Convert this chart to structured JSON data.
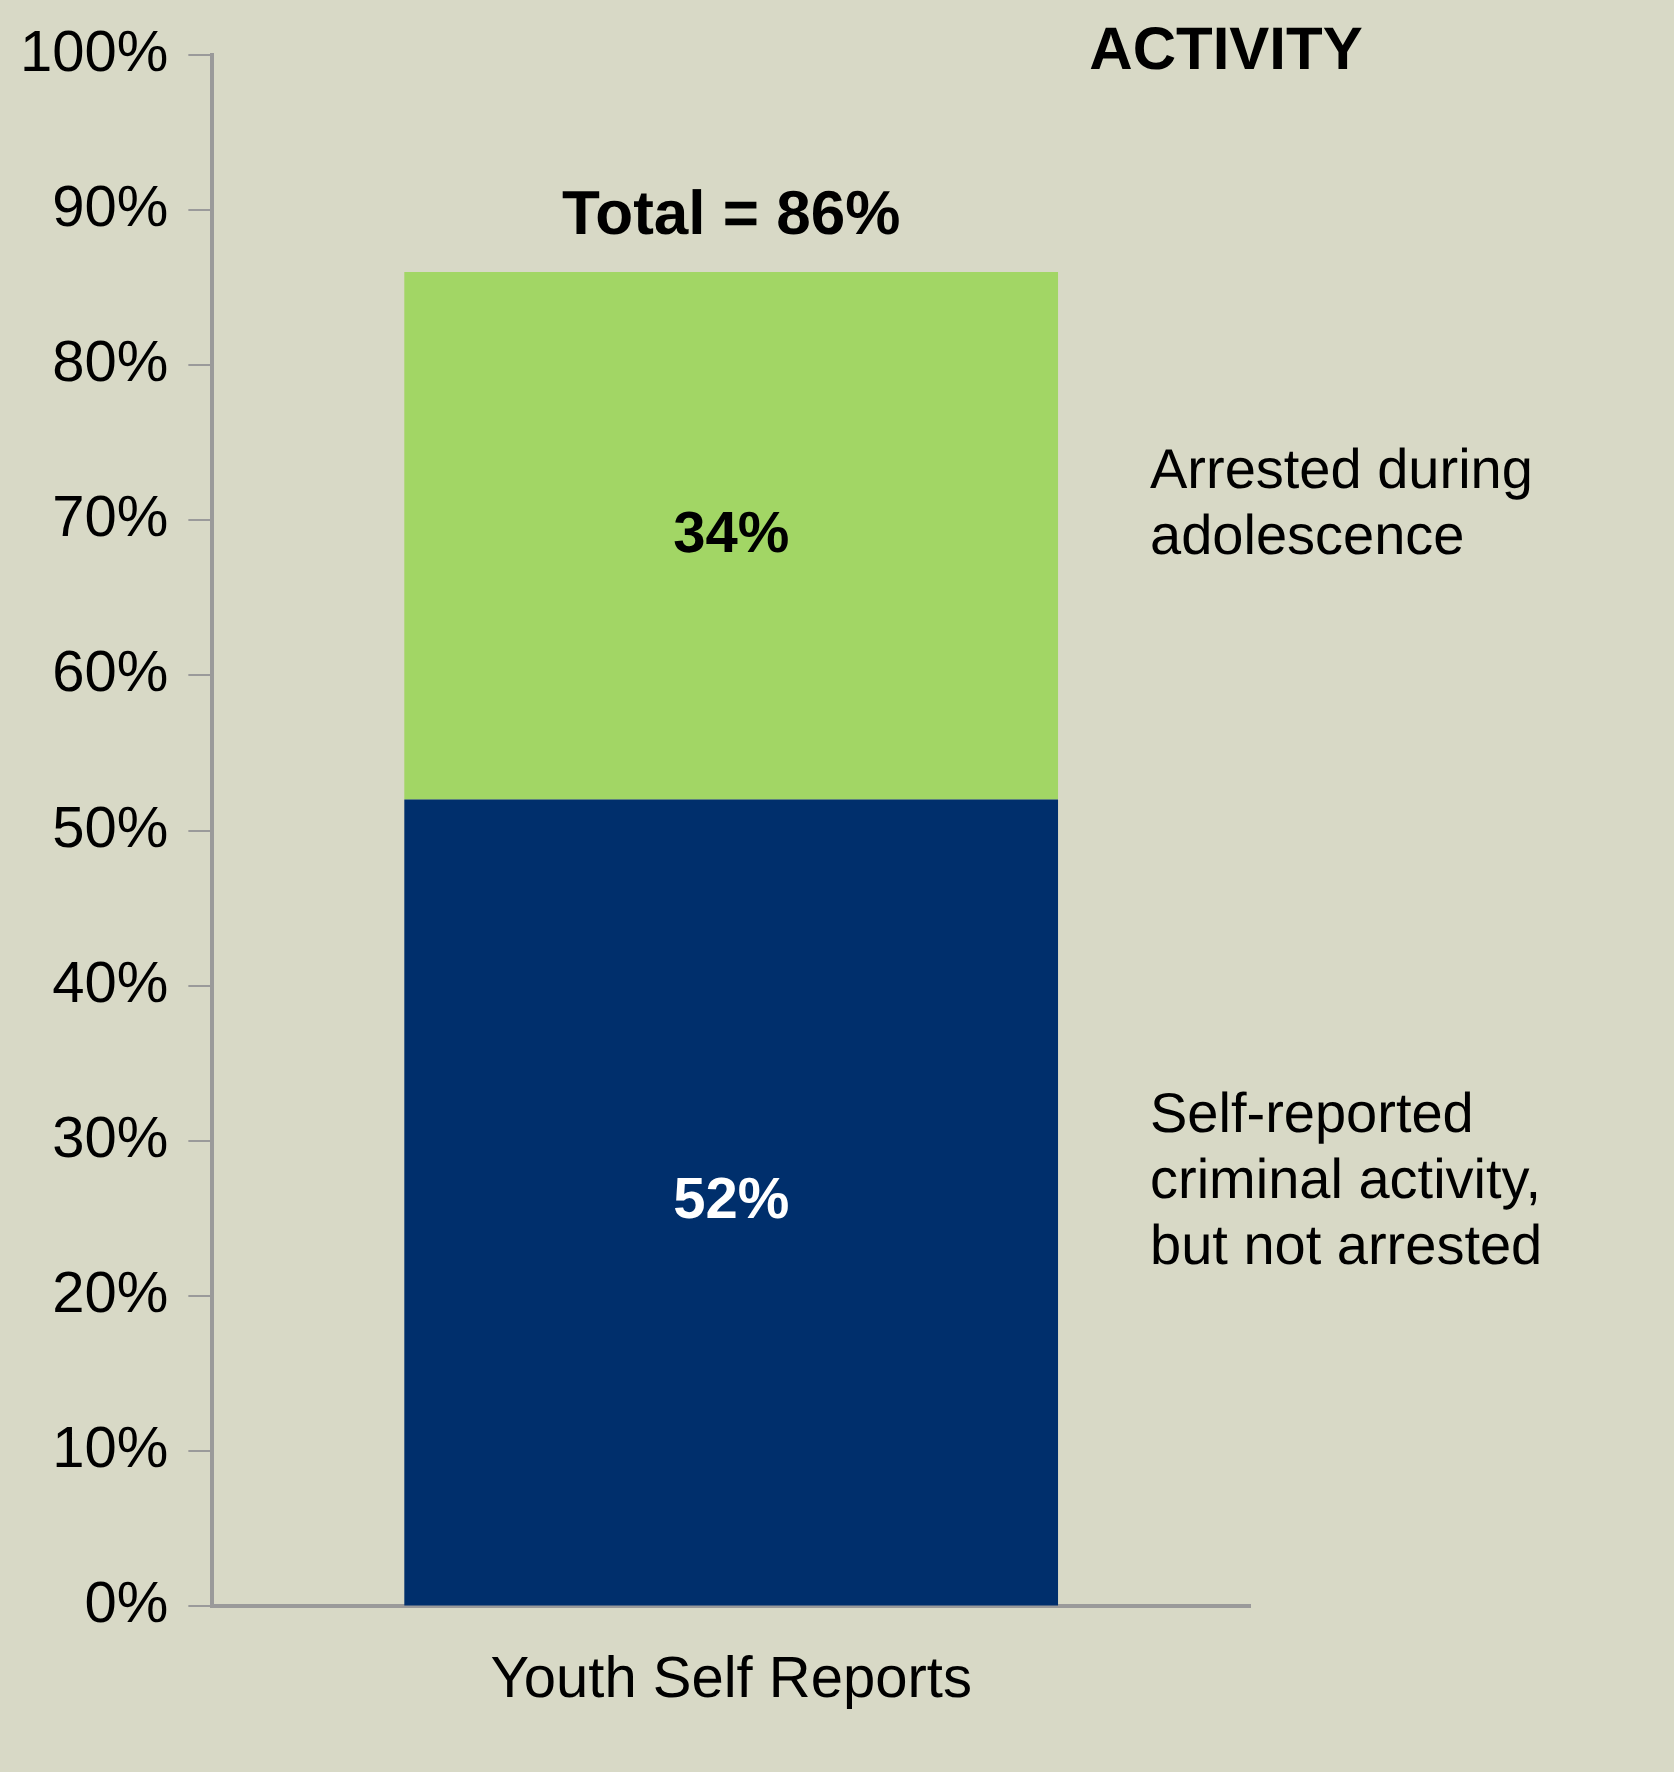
{
  "chart_data": {
    "type": "bar",
    "title": "ACTIVITY",
    "stacked": true,
    "categories": [
      "Youth Self Reports"
    ],
    "series": [
      {
        "name": "Self-reported criminal activity, but not arrested",
        "color": "#002f6c",
        "values": [
          52
        ]
      },
      {
        "name": "Arrested during adolescence",
        "color": "#a2d665",
        "values": [
          34
        ]
      }
    ],
    "ylim": [
      0,
      100
    ],
    "yticks": [
      {
        "value": 0,
        "label": "0%"
      },
      {
        "value": 10,
        "label": "10%"
      },
      {
        "value": 20,
        "label": "20%"
      },
      {
        "value": 30,
        "label": "30%"
      },
      {
        "value": 40,
        "label": "40%"
      },
      {
        "value": 50,
        "label": "50%"
      },
      {
        "value": 60,
        "label": "60%"
      },
      {
        "value": 70,
        "label": "70%"
      },
      {
        "value": 80,
        "label": "80%"
      },
      {
        "value": 90,
        "label": "90%"
      },
      {
        "value": 100,
        "label": "100%"
      }
    ],
    "value_labels": [
      [
        "52%"
      ],
      [
        "34%"
      ]
    ],
    "totals": [
      "Total = 86%"
    ],
    "legend": "right",
    "grid": false
  }
}
